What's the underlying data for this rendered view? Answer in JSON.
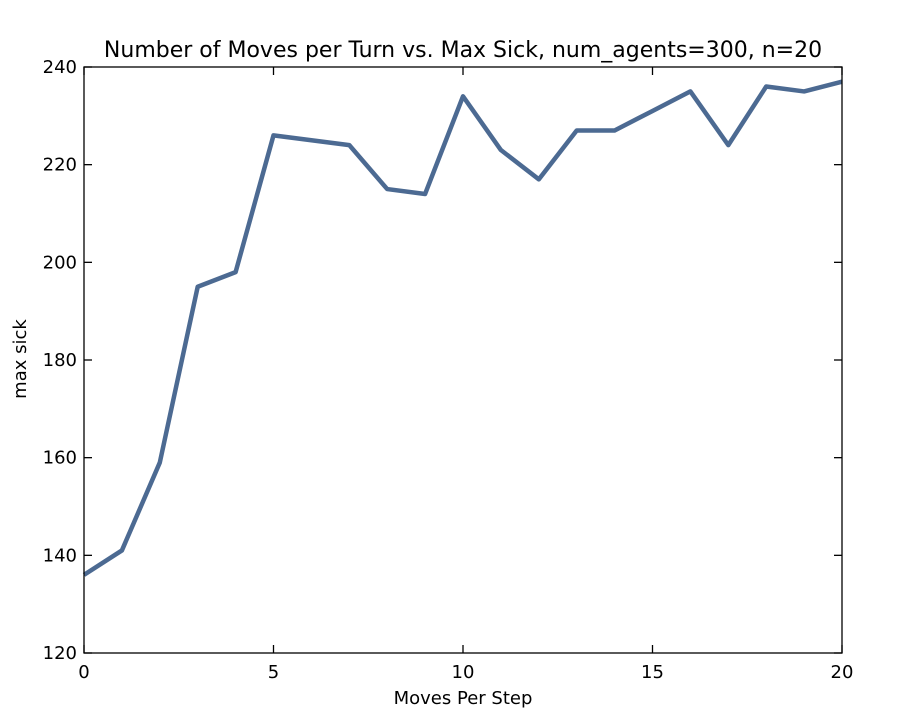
{
  "chart_data": {
    "type": "line",
    "title": "Number of Moves per Turn vs. Max Sick, num_agents=300, n=20",
    "xlabel": "Moves Per Step",
    "ylabel": "max sick",
    "xlim": [
      0,
      20
    ],
    "ylim": [
      120,
      240
    ],
    "xticks": [
      0,
      5,
      10,
      15,
      20
    ],
    "yticks": [
      120,
      140,
      160,
      180,
      200,
      220,
      240
    ],
    "grid": false,
    "series": [
      {
        "color": "#4c6a92",
        "x": [
          0,
          1,
          2,
          3,
          4,
          5,
          6,
          7,
          8,
          9,
          10,
          11,
          12,
          13,
          14,
          15,
          16,
          17,
          18,
          19,
          20
        ],
        "y": [
          136,
          141,
          159,
          195,
          198,
          226,
          225,
          224,
          215,
          214,
          234,
          223,
          217,
          227,
          227,
          231,
          235,
          224,
          236,
          235,
          237
        ]
      }
    ]
  }
}
